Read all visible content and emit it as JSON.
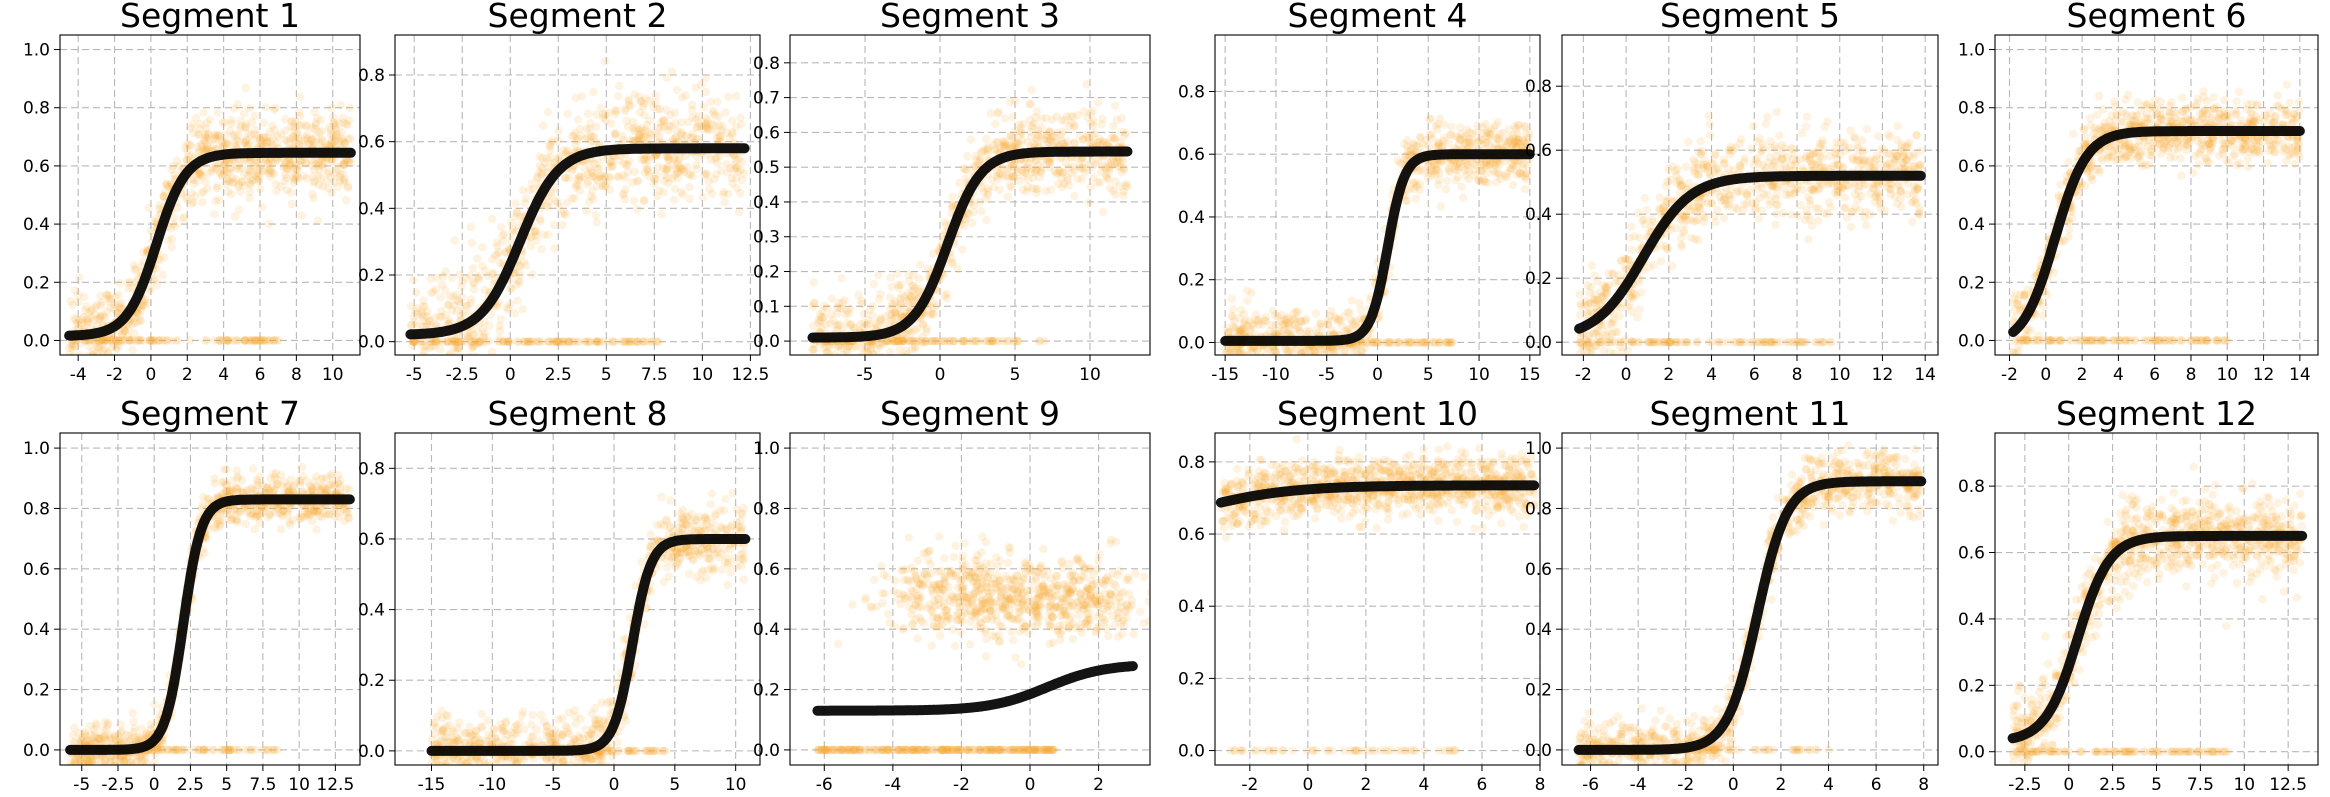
{
  "figure": {
    "scatter_color": "#f7a52c",
    "curve_color": "#000000"
  },
  "chart_data": [
    {
      "type": "scatter",
      "title": "Segment 1",
      "xlabel": "",
      "ylabel": "",
      "xlim": [
        -5,
        11.5
      ],
      "ylim": [
        -0.05,
        1.05
      ],
      "xticks": [
        -4,
        -2,
        0,
        2,
        4,
        6,
        8,
        10
      ],
      "yticks": [
        0.0,
        0.2,
        0.4,
        0.6,
        0.8,
        1.0
      ],
      "grid": true,
      "series": [
        {
          "kind": "logistic-fit",
          "x_range": [
            -4.5,
            11
          ],
          "upper": 0.645,
          "lower": 0.015,
          "midpoint": 0.3,
          "slope": 1.25
        },
        {
          "kind": "scatter",
          "alpha": 0.15,
          "x_range": [
            -4.5,
            11
          ],
          "spread": 0.07,
          "zero_fraction": 0.12,
          "n": 1000
        }
      ]
    },
    {
      "type": "scatter",
      "title": "Segment 2",
      "xlabel": "",
      "ylabel": "",
      "xlim": [
        -6,
        13
      ],
      "ylim": [
        -0.04,
        0.92
      ],
      "xticks": [
        -5.0,
        -2.5,
        0.0,
        2.5,
        5.0,
        7.5,
        10.0,
        12.5
      ],
      "yticks": [
        0.0,
        0.2,
        0.4,
        0.6,
        0.8
      ],
      "grid": true,
      "series": [
        {
          "kind": "logistic-fit",
          "x_range": [
            -5.2,
            12.2
          ],
          "upper": 0.58,
          "lower": 0.02,
          "midpoint": 0.5,
          "slope": 1.0
        },
        {
          "kind": "scatter",
          "alpha": 0.15,
          "x_range": [
            -5.2,
            12.2
          ],
          "spread": 0.08,
          "zero_fraction": 0.13,
          "n": 1000
        }
      ]
    },
    {
      "type": "scatter",
      "title": "Segment 3",
      "xlabel": "",
      "ylabel": "",
      "xlim": [
        -10,
        14
      ],
      "ylim": [
        -0.04,
        0.88
      ],
      "xticks": [
        -5,
        0,
        5,
        10
      ],
      "yticks": [
        0.0,
        0.1,
        0.2,
        0.3,
        0.4,
        0.5,
        0.6,
        0.7,
        0.8
      ],
      "grid": true,
      "series": [
        {
          "kind": "logistic-fit",
          "x_range": [
            -8.5,
            12.5
          ],
          "upper": 0.545,
          "lower": 0.01,
          "midpoint": 0.5,
          "slope": 0.9
        },
        {
          "kind": "scatter",
          "alpha": 0.15,
          "x_range": [
            -8.5,
            12.5
          ],
          "spread": 0.06,
          "zero_fraction": 0.1,
          "n": 1000
        }
      ]
    },
    {
      "type": "scatter",
      "title": "Segment 4",
      "xlabel": "",
      "ylabel": "",
      "xlim": [
        -16,
        16
      ],
      "ylim": [
        -0.04,
        0.98
      ],
      "xticks": [
        -15,
        -10,
        -5,
        0,
        5,
        10,
        15
      ],
      "yticks": [
        0.0,
        0.2,
        0.4,
        0.6,
        0.8
      ],
      "grid": true,
      "series": [
        {
          "kind": "logistic-fit",
          "x_range": [
            -15,
            15
          ],
          "upper": 0.6,
          "lower": 0.005,
          "midpoint": 1.0,
          "slope": 1.2
        },
        {
          "kind": "scatter",
          "alpha": 0.15,
          "x_range": [
            -15,
            15
          ],
          "spread": 0.05,
          "zero_fraction": 0.1,
          "n": 1000
        }
      ]
    },
    {
      "type": "scatter",
      "title": "Segment 5",
      "xlabel": "",
      "ylabel": "",
      "xlim": [
        -3,
        14.6
      ],
      "ylim": [
        -0.04,
        0.96
      ],
      "xticks": [
        -2,
        0,
        2,
        4,
        6,
        8,
        10,
        12,
        14
      ],
      "yticks": [
        0.0,
        0.2,
        0.4,
        0.6,
        0.8
      ],
      "grid": true,
      "series": [
        {
          "kind": "logistic-fit",
          "x_range": [
            -2.2,
            13.8
          ],
          "upper": 0.52,
          "lower": 0.01,
          "midpoint": 0.8,
          "slope": 0.9
        },
        {
          "kind": "scatter",
          "alpha": 0.15,
          "x_range": [
            -2.2,
            13.8
          ],
          "spread": 0.07,
          "zero_fraction": 0.1,
          "n": 1000
        }
      ]
    },
    {
      "type": "scatter",
      "title": "Segment 6",
      "xlabel": "",
      "ylabel": "",
      "xlim": [
        -2.8,
        15
      ],
      "ylim": [
        -0.05,
        1.05
      ],
      "xticks": [
        -2,
        0,
        2,
        4,
        6,
        8,
        10,
        12,
        14
      ],
      "yticks": [
        0.0,
        0.2,
        0.4,
        0.6,
        0.8,
        1.0
      ],
      "grid": true,
      "series": [
        {
          "kind": "logistic-fit",
          "x_range": [
            -1.8,
            14
          ],
          "upper": 0.72,
          "lower": -0.02,
          "midpoint": 0.5,
          "slope": 1.15
        },
        {
          "kind": "scatter",
          "alpha": 0.15,
          "x_range": [
            -1.8,
            14
          ],
          "spread": 0.055,
          "zero_fraction": 0.1,
          "n": 1000
        }
      ]
    },
    {
      "type": "scatter",
      "title": "Segment 7",
      "xlabel": "",
      "ylabel": "",
      "xlim": [
        -6.5,
        14.2
      ],
      "ylim": [
        -0.05,
        1.05
      ],
      "xticks": [
        -5.0,
        -2.5,
        0.0,
        2.5,
        5.0,
        7.5,
        10.0,
        12.5
      ],
      "yticks": [
        0.0,
        0.2,
        0.4,
        0.6,
        0.8,
        1.0
      ],
      "grid": true,
      "series": [
        {
          "kind": "logistic-fit",
          "x_range": [
            -5.8,
            13.5
          ],
          "upper": 0.83,
          "lower": 0.0,
          "midpoint": 2.0,
          "slope": 1.6
        },
        {
          "kind": "scatter",
          "alpha": 0.15,
          "x_range": [
            -5.8,
            13.5
          ],
          "spread": 0.04,
          "zero_fraction": 0.1,
          "n": 1000
        }
      ]
    },
    {
      "type": "scatter",
      "title": "Segment 8",
      "xlabel": "",
      "ylabel": "",
      "xlim": [
        -18,
        12
      ],
      "ylim": [
        -0.04,
        0.9
      ],
      "xticks": [
        -15,
        -10,
        -5,
        0,
        5,
        10
      ],
      "yticks": [
        0.0,
        0.2,
        0.4,
        0.6,
        0.8
      ],
      "grid": true,
      "series": [
        {
          "kind": "logistic-fit",
          "x_range": [
            -15,
            10.8
          ],
          "upper": 0.6,
          "lower": 0.0,
          "midpoint": 1.5,
          "slope": 1.3
        },
        {
          "kind": "scatter",
          "alpha": 0.15,
          "x_range": [
            -15,
            10.8
          ],
          "spread": 0.05,
          "zero_fraction": 0.1,
          "n": 1000
        }
      ]
    },
    {
      "type": "scatter",
      "title": "Segment 9",
      "xlabel": "",
      "ylabel": "",
      "xlim": [
        -7,
        3.5
      ],
      "ylim": [
        -0.05,
        1.05
      ],
      "xticks": [
        -6,
        -4,
        -2,
        0,
        2
      ],
      "yticks": [
        0.0,
        0.2,
        0.4,
        0.6,
        0.8,
        1.0
      ],
      "grid": true,
      "series": [
        {
          "kind": "logistic-fit",
          "x_range": [
            -6.2,
            3.0
          ],
          "upper": 0.285,
          "lower": 0.13,
          "midpoint": 0.5,
          "slope": 1.2
        },
        {
          "kind": "scatter",
          "alpha": 0.15,
          "x_range": [
            -6.2,
            3.0
          ],
          "clusters": [
            [
              -2.0,
              0.52
            ],
            [
              1.2,
              0.5
            ]
          ],
          "spread": 0.07,
          "zero_fraction": 0.25,
          "n": 1000
        }
      ]
    },
    {
      "type": "scatter",
      "title": "Segment 10",
      "xlabel": "",
      "ylabel": "",
      "xlim": [
        -3.2,
        8
      ],
      "ylim": [
        -0.04,
        0.88
      ],
      "xticks": [
        -2,
        0,
        2,
        4,
        6,
        8
      ],
      "yticks": [
        0.0,
        0.2,
        0.4,
        0.6,
        0.8
      ],
      "grid": true,
      "series": [
        {
          "kind": "logistic-fit",
          "x_range": [
            -3,
            7.8
          ],
          "upper": 0.735,
          "lower": 0.6,
          "midpoint": -4.0,
          "slope": 0.6
        },
        {
          "kind": "scatter",
          "alpha": 0.15,
          "x_range": [
            -3,
            7.8
          ],
          "spread": 0.04,
          "zero_fraction": 0.04,
          "n": 1000
        }
      ]
    },
    {
      "type": "scatter",
      "title": "Segment 11",
      "xlabel": "",
      "ylabel": "",
      "xlim": [
        -7.2,
        8.6
      ],
      "ylim": [
        -0.05,
        1.05
      ],
      "xticks": [
        -6,
        -4,
        -2,
        0,
        2,
        4,
        6,
        8
      ],
      "yticks": [
        0.0,
        0.2,
        0.4,
        0.6,
        0.8,
        1.0
      ],
      "grid": true,
      "series": [
        {
          "kind": "logistic-fit",
          "x_range": [
            -6.5,
            7.9
          ],
          "upper": 0.89,
          "lower": 0.0,
          "midpoint": 1.0,
          "slope": 1.6
        },
        {
          "kind": "scatter",
          "alpha": 0.15,
          "x_range": [
            -6.5,
            7.9
          ],
          "spread": 0.05,
          "zero_fraction": 0.1,
          "n": 1000
        }
      ]
    },
    {
      "type": "scatter",
      "title": "Segment 12",
      "xlabel": "",
      "ylabel": "",
      "xlim": [
        -4.2,
        14.2
      ],
      "ylim": [
        -0.04,
        0.96
      ],
      "xticks": [
        -2.5,
        0.0,
        2.5,
        5.0,
        7.5,
        10.0,
        12.5
      ],
      "yticks": [
        0.0,
        0.2,
        0.4,
        0.6,
        0.8
      ],
      "grid": true,
      "series": [
        {
          "kind": "logistic-fit",
          "x_range": [
            -3.2,
            13.3
          ],
          "upper": 0.65,
          "lower": 0.03,
          "midpoint": 0.5,
          "slope": 1.1
        },
        {
          "kind": "scatter",
          "alpha": 0.15,
          "x_range": [
            -3.2,
            13.3
          ],
          "spread": 0.06,
          "zero_fraction": 0.1,
          "n": 1000
        }
      ]
    }
  ]
}
